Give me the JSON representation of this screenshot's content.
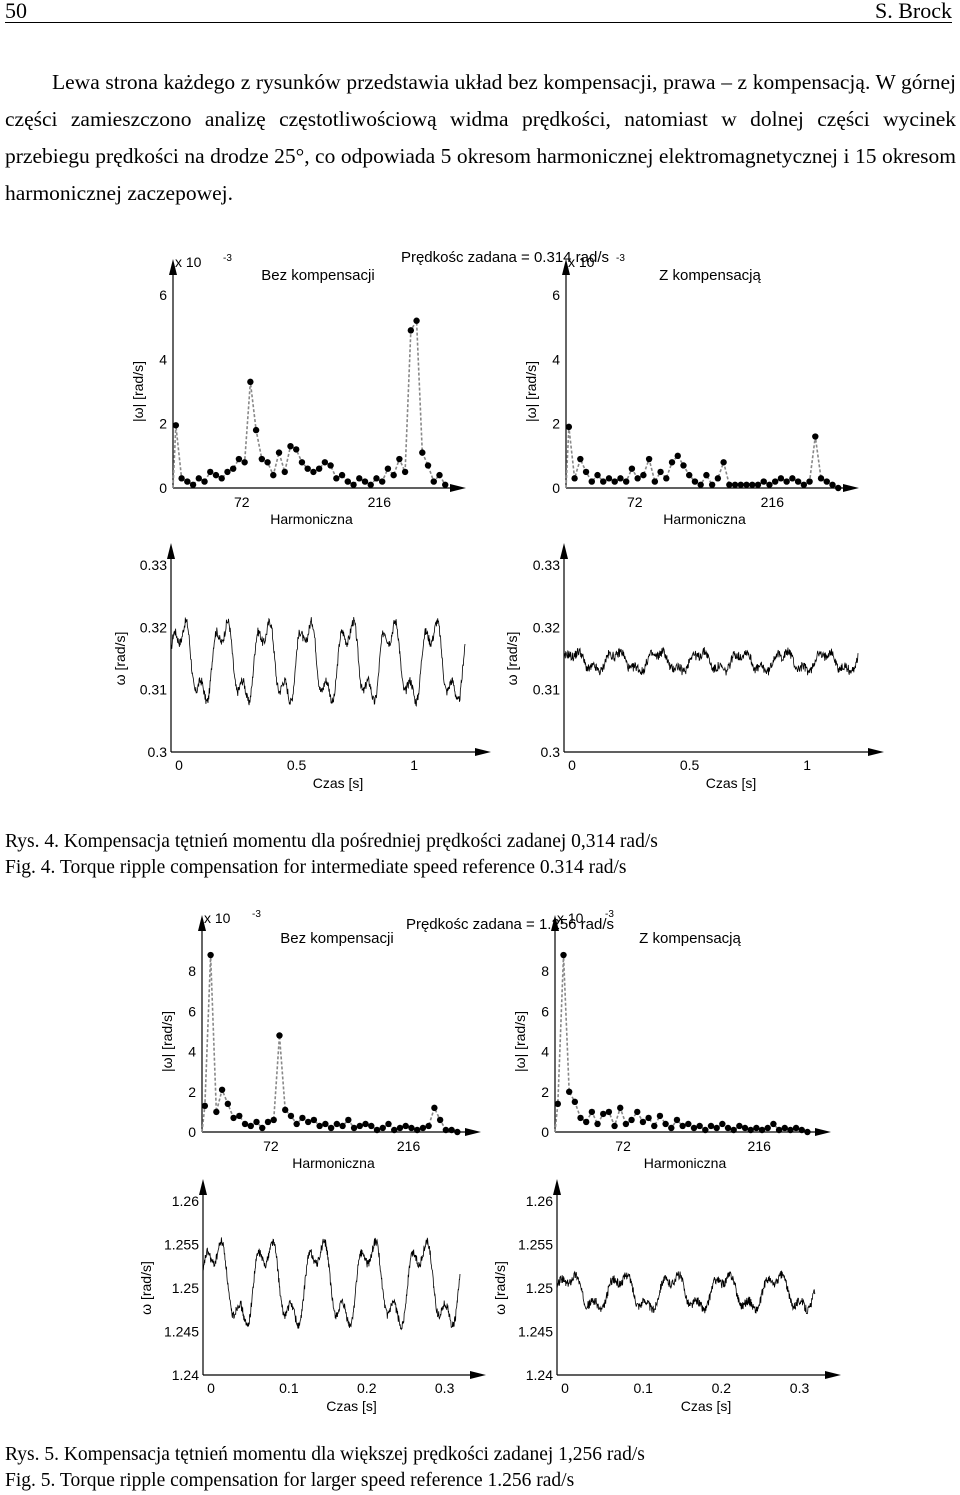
{
  "header": {
    "page_number": "50",
    "author": "S. Brock"
  },
  "paragraph": "Lewa strona każdego z rysunków przedstawia układ bez kompensacji, prawa – z kompensacją. W górnej części zamieszczono analizę częstotliwościową widma prędkości, natomiast w dolnej części wycinek przebiegu prędkości na drodze 25°, co odpowiada 5 okresom harmonicznej elektromagnetycznej i 15 okresom harmonicznej zaczepowej.",
  "figures": [
    {
      "caption_pl": "Rys. 4. Kompensacja tętnień momentu dla pośredniej prędkości zadanej 0,314 rad/s",
      "caption_en": "Fig. 4. Torque ripple compensation for intermediate speed reference 0.314 rad/s",
      "main_title": "Prędkośc zadana = 0.314 rad/s",
      "left_title": "Bez kompensacji",
      "right_title": "Z kompensacją",
      "spectrum": {
        "multiplier": "x 10",
        "multiplier_exp": "-3",
        "ylabel": "|ω| [rad/s]",
        "xlabel": "Harmoniczna",
        "yticks": [
          "0",
          "2",
          "4",
          "6"
        ],
        "xticks": [
          "72",
          "216"
        ]
      },
      "time": {
        "ylabel": "ω [rad/s]",
        "xlabel": "Czas [s]",
        "yticks": [
          "0.3",
          "0.31",
          "0.32",
          "0.33"
        ],
        "xticks": [
          "0",
          "0.5",
          "1"
        ]
      },
      "chart_data": [
        {
          "type": "scatter",
          "title": "Bez kompensacji",
          "xlabel": "Harmoniczna",
          "ylabel": "|ω| [rad/s]",
          "ylim": [
            0,
            6
          ],
          "y_multiplier": "x 10^-3",
          "x": [
            3,
            9,
            15,
            21,
            27,
            33,
            39,
            45,
            51,
            57,
            63,
            69,
            75,
            81,
            87,
            93,
            99,
            105,
            111,
            117,
            123,
            129,
            135,
            141,
            147,
            153,
            159,
            165,
            171,
            177,
            183,
            189,
            195,
            201,
            207,
            213,
            219,
            225,
            231,
            237,
            243,
            249,
            255,
            261,
            267,
            273,
            279,
            285
          ],
          "values": [
            1.95,
            0.3,
            0.2,
            0.1,
            0.3,
            0.2,
            0.5,
            0.4,
            0.3,
            0.5,
            0.6,
            0.9,
            0.8,
            3.3,
            1.8,
            0.9,
            0.8,
            0.4,
            1.1,
            0.5,
            1.3,
            1.2,
            0.8,
            0.6,
            0.5,
            0.6,
            0.8,
            0.7,
            0.3,
            0.4,
            0.2,
            0.1,
            0.3,
            0.2,
            0.1,
            0.3,
            0.2,
            0.6,
            0.4,
            0.9,
            0.5,
            4.9,
            5.2,
            1.1,
            0.7,
            0.2,
            0.4,
            0.1
          ]
        },
        {
          "type": "scatter",
          "title": "Z kompensacją",
          "xlabel": "Harmoniczna",
          "ylabel": "|ω| [rad/s]",
          "ylim": [
            0,
            6
          ],
          "y_multiplier": "x 10^-3",
          "x": [
            3,
            9,
            15,
            21,
            27,
            33,
            39,
            45,
            51,
            57,
            63,
            69,
            75,
            81,
            87,
            93,
            99,
            105,
            111,
            117,
            123,
            129,
            135,
            141,
            147,
            153,
            159,
            165,
            171,
            177,
            183,
            189,
            195,
            201,
            207,
            213,
            219,
            225,
            231,
            237,
            243,
            249,
            255,
            261,
            267,
            273,
            279,
            285
          ],
          "values": [
            1.9,
            0.3,
            0.9,
            0.5,
            0.2,
            0.4,
            0.2,
            0.3,
            0.2,
            0.3,
            0.2,
            0.6,
            0.3,
            0.4,
            0.9,
            0.2,
            0.5,
            0.3,
            0.8,
            1.0,
            0.7,
            0.4,
            0.2,
            0.1,
            0.4,
            0.1,
            0.3,
            0.8,
            0.1,
            0.1,
            0.1,
            0.1,
            0.1,
            0.1,
            0.2,
            0.1,
            0.2,
            0.3,
            0.2,
            0.3,
            0.2,
            0.1,
            0.2,
            1.6,
            0.3,
            0.2,
            0.1,
            0.0
          ]
        },
        {
          "type": "line",
          "title": "Bez kompensacji",
          "xlabel": "Czas [s]",
          "ylabel": "ω [rad/s]",
          "xlim": [
            0,
            1.25
          ],
          "ylim": [
            0.3,
            0.33
          ],
          "ripple_period_s": 0.178,
          "ripple_amplitude": 0.008,
          "mean": 0.3145
        },
        {
          "type": "line",
          "title": "Z kompensacją",
          "xlabel": "Czas [s]",
          "ylabel": "ω [rad/s]",
          "xlim": [
            0,
            1.25
          ],
          "ylim": [
            0.3,
            0.33
          ],
          "ripple_period_s": 0.178,
          "ripple_amplitude": 0.002,
          "mean": 0.3145
        }
      ]
    },
    {
      "caption_pl": "Rys. 5. Kompensacja tętnień momentu dla większej prędkości zadanej 1,256 rad/s",
      "caption_en": "Fig. 5. Torque ripple compensation for larger speed reference 1.256 rad/s",
      "main_title": "Prędkośc zadana = 1.256 rad/s",
      "left_title": "Bez kompensacji",
      "right_title": "Z kompensacją",
      "spectrum": {
        "multiplier": "x 10",
        "multiplier_exp": "-3",
        "ylabel": "|ω| [rad/s]",
        "xlabel": "Harmoniczna",
        "yticks": [
          "0",
          "2",
          "4",
          "6",
          "8"
        ],
        "xticks": [
          "72",
          "216"
        ]
      },
      "time": {
        "ylabel": "ω [rad/s]",
        "xlabel": "Czas [s]",
        "yticks": [
          "1.24",
          "1.245",
          "1.25",
          "1.255",
          "1.26"
        ],
        "xticks": [
          "0",
          "0.1",
          "0.2",
          "0.3"
        ]
      },
      "chart_data": [
        {
          "type": "scatter",
          "title": "Bez kompensacji",
          "xlabel": "Harmoniczna",
          "ylabel": "|ω| [rad/s]",
          "ylim": [
            0,
            9
          ],
          "y_multiplier": "x 10^-3",
          "x": [
            3,
            9,
            15,
            21,
            27,
            33,
            39,
            45,
            51,
            57,
            63,
            69,
            75,
            81,
            87,
            93,
            99,
            105,
            111,
            117,
            123,
            129,
            135,
            141,
            147,
            153,
            159,
            165,
            171,
            177,
            183,
            189,
            195,
            201,
            207,
            213,
            219,
            225,
            231,
            237,
            243,
            249,
            255,
            261,
            267
          ],
          "values": [
            1.3,
            8.8,
            1.0,
            2.1,
            1.4,
            0.7,
            0.8,
            0.4,
            0.3,
            0.5,
            0.2,
            0.5,
            0.6,
            4.8,
            1.1,
            0.8,
            0.4,
            0.7,
            0.5,
            0.6,
            0.3,
            0.4,
            0.2,
            0.4,
            0.3,
            0.6,
            0.2,
            0.3,
            0.4,
            0.3,
            0.1,
            0.2,
            0.4,
            0.1,
            0.2,
            0.3,
            0.2,
            0.1,
            0.2,
            0.3,
            1.2,
            0.6,
            0.1,
            0.1,
            0.0
          ]
        },
        {
          "type": "scatter",
          "title": "Z kompensacją",
          "xlabel": "Harmoniczna",
          "ylabel": "|ω| [rad/s]",
          "ylim": [
            0,
            9
          ],
          "y_multiplier": "x 10^-3",
          "x": [
            3,
            9,
            15,
            21,
            27,
            33,
            39,
            45,
            51,
            57,
            63,
            69,
            75,
            81,
            87,
            93,
            99,
            105,
            111,
            117,
            123,
            129,
            135,
            141,
            147,
            153,
            159,
            165,
            171,
            177,
            183,
            189,
            195,
            201,
            207,
            213,
            219,
            225,
            231,
            237,
            243,
            249,
            255,
            261,
            267
          ],
          "values": [
            1.4,
            8.8,
            2.0,
            1.5,
            0.7,
            0.5,
            1.0,
            0.4,
            0.9,
            1.0,
            0.3,
            1.2,
            0.4,
            0.6,
            1.0,
            0.5,
            0.7,
            0.3,
            0.8,
            0.4,
            0.2,
            0.6,
            0.3,
            0.4,
            0.2,
            0.3,
            0.1,
            0.3,
            0.2,
            0.4,
            0.2,
            0.1,
            0.3,
            0.2,
            0.1,
            0.2,
            0.1,
            0.2,
            0.4,
            0.1,
            0.2,
            0.1,
            0.2,
            0.1,
            0.0
          ]
        },
        {
          "type": "line",
          "title": "Bez kompensacji",
          "xlabel": "Czas [s]",
          "ylabel": "ω [rad/s]",
          "xlim": [
            0,
            0.33
          ],
          "ylim": [
            1.24,
            1.26
          ],
          "ripple_period_s": 0.066,
          "ripple_amplitude": 0.006,
          "mean": 1.2505
        },
        {
          "type": "line",
          "title": "Z kompensacją",
          "xlabel": "Czas [s]",
          "ylabel": "ω [rad/s]",
          "xlim": [
            0,
            0.33
          ],
          "ylim": [
            1.24,
            1.26
          ],
          "ripple_period_s": 0.066,
          "ripple_amplitude": 0.0025,
          "mean": 1.2495
        }
      ]
    }
  ]
}
